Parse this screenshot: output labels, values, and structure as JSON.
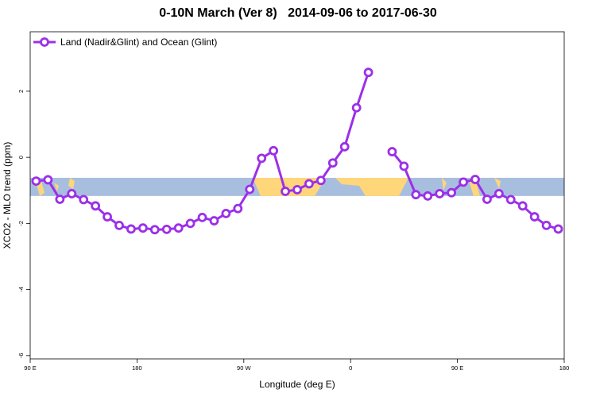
{
  "chart_data": {
    "type": "line",
    "title_region": "0-10N March (Ver 8)",
    "title_dates": "2014-09-06 to 2017-06-30",
    "xlabel": "Longitude (deg E)",
    "ylabel": "XCO2 - MLO trend (ppm)",
    "xlim": [
      90,
      540
    ],
    "ylim": [
      -6.1,
      3.8
    ],
    "x_ticks": [
      {
        "value": 90,
        "label": "90 E"
      },
      {
        "value": 180,
        "label": "180"
      },
      {
        "value": 270,
        "label": "90 W"
      },
      {
        "value": 360,
        "label": "0"
      },
      {
        "value": 450,
        "label": "90 E"
      },
      {
        "value": 540,
        "label": "180"
      }
    ],
    "y_ticks": [
      {
        "value": -6,
        "label": "-6"
      },
      {
        "value": -4,
        "label": "-4"
      },
      {
        "value": -2,
        "label": "-2"
      },
      {
        "value": 0,
        "label": "0"
      },
      {
        "value": 2,
        "label": "2"
      }
    ],
    "legend_position": "top-left",
    "colors": {
      "series": "#9b30e8",
      "ocean": "#a8bede",
      "land": "#ffd67a"
    },
    "band": {
      "y_bottom": -1.17,
      "y_top": -0.62
    },
    "series": [
      {
        "name": "Land (Nadir&Glint) and Ocean (Glint)",
        "segments": [
          [
            [
              95,
              -0.72
            ],
            [
              105,
              -0.68
            ],
            [
              115,
              -1.27
            ],
            [
              125,
              -1.1
            ],
            [
              135,
              -1.28
            ],
            [
              145,
              -1.47
            ],
            [
              155,
              -1.8
            ],
            [
              165,
              -2.06
            ],
            [
              175,
              -2.17
            ],
            [
              185,
              -2.14
            ],
            [
              195,
              -2.19
            ],
            [
              205,
              -2.18
            ],
            [
              215,
              -2.14
            ],
            [
              225,
              -2.0
            ],
            [
              235,
              -1.82
            ],
            [
              245,
              -1.92
            ],
            [
              255,
              -1.7
            ],
            [
              265,
              -1.55
            ],
            [
              275,
              -0.97
            ],
            [
              285,
              -0.03
            ],
            [
              295,
              0.2
            ],
            [
              305,
              -1.03
            ],
            [
              315,
              -0.98
            ],
            [
              325,
              -0.8
            ],
            [
              335,
              -0.7
            ],
            [
              345,
              -0.17
            ],
            [
              355,
              0.32
            ],
            [
              365,
              1.5
            ],
            [
              375,
              2.57
            ]
          ],
          [
            [
              395,
              0.17
            ],
            [
              405,
              -0.27
            ],
            [
              415,
              -1.13
            ],
            [
              425,
              -1.17
            ],
            [
              435,
              -1.1
            ],
            [
              445,
              -1.07
            ],
            [
              455,
              -0.75
            ],
            [
              465,
              -0.67
            ],
            [
              475,
              -1.27
            ],
            [
              485,
              -1.1
            ],
            [
              495,
              -1.28
            ],
            [
              505,
              -1.47
            ],
            [
              515,
              -1.8
            ],
            [
              525,
              -2.06
            ],
            [
              535,
              -2.17
            ]
          ]
        ]
      }
    ]
  }
}
